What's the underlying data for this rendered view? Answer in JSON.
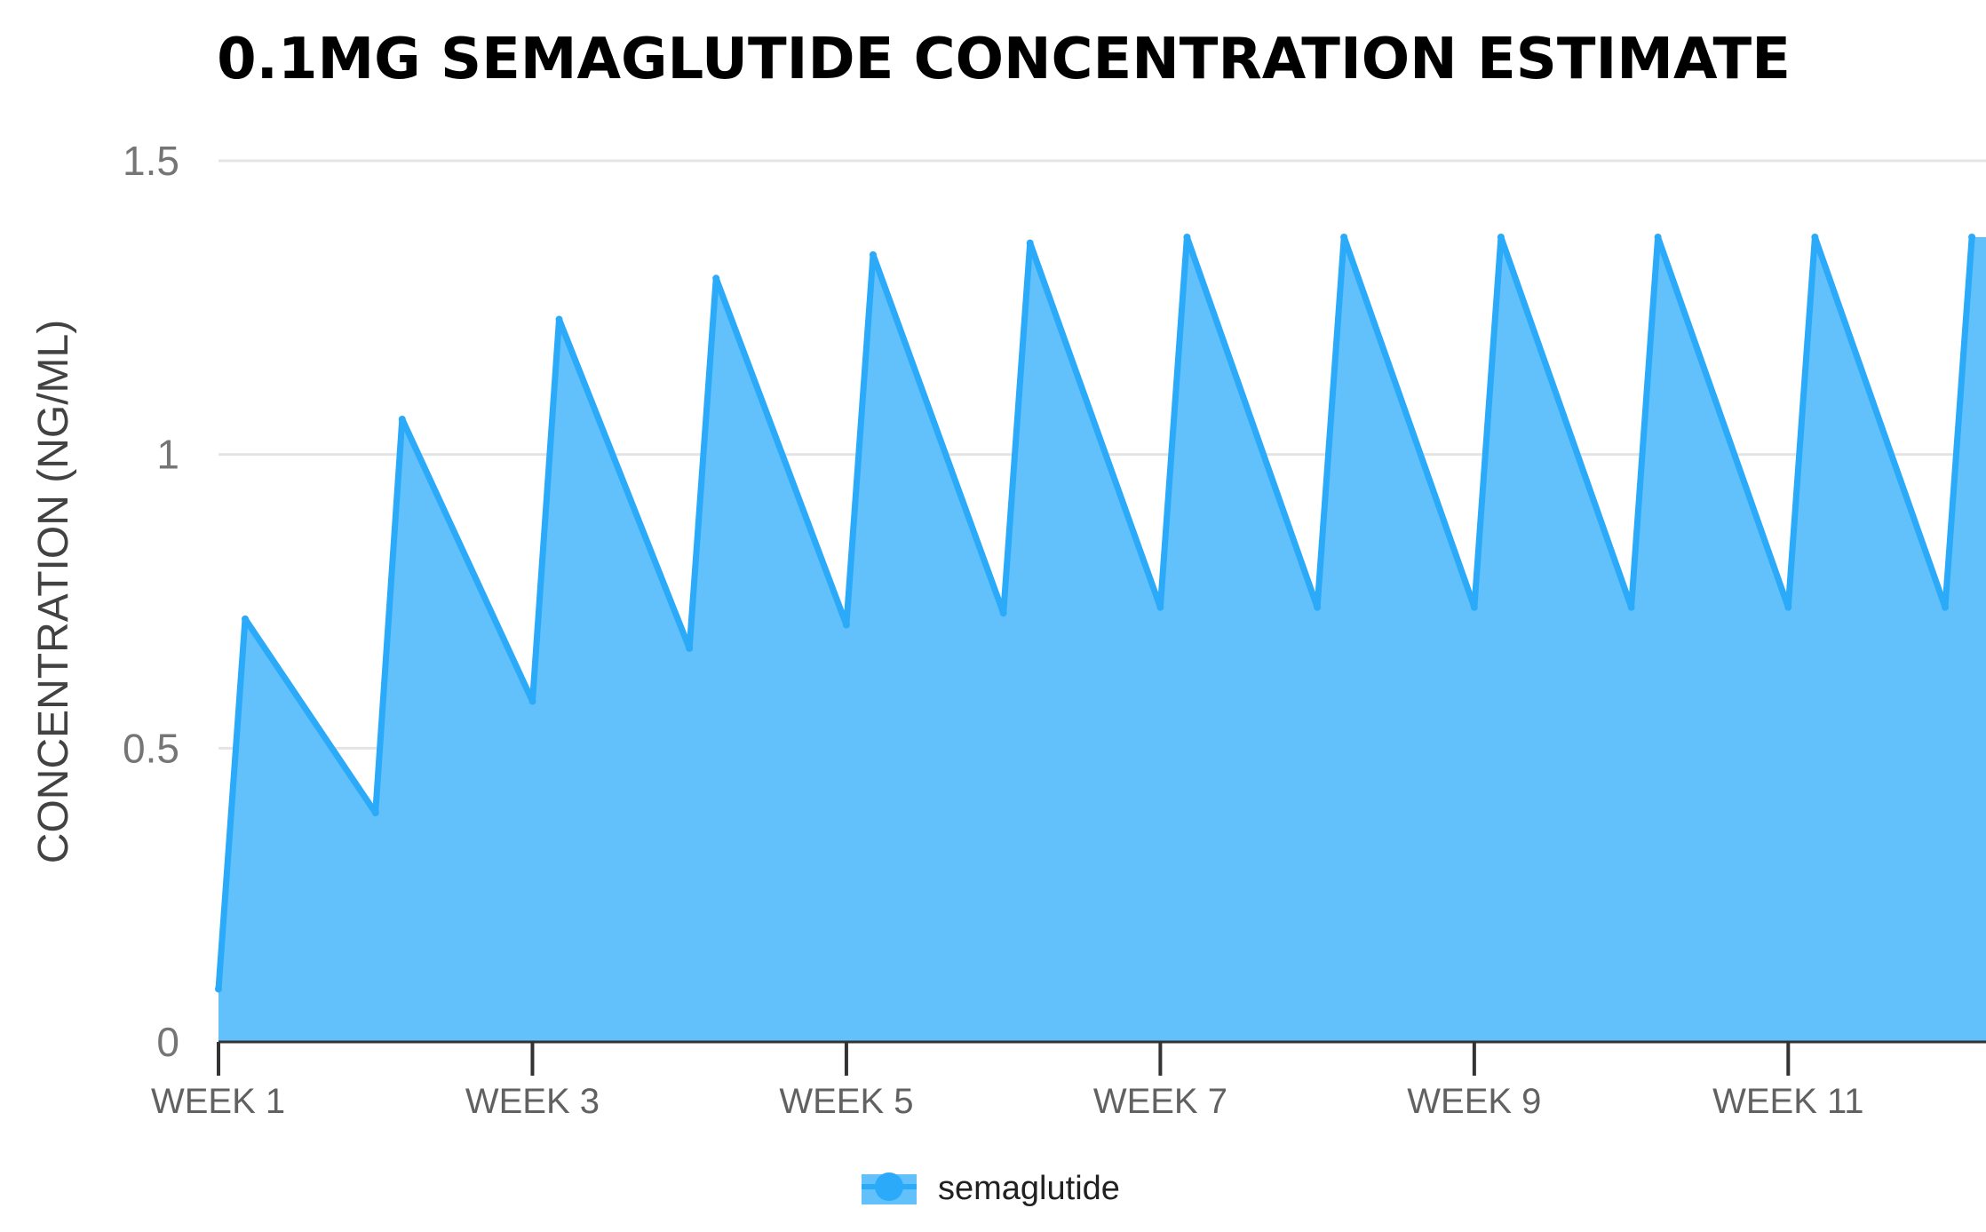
{
  "chart_data": {
    "type": "area",
    "title": "0.1MG SEMAGLUTIDE CONCENTRATION ESTIMATE",
    "xlabel": "",
    "ylabel": "CONCENTRATION (NG/ML)",
    "ylim": [
      0,
      1.5
    ],
    "yticks": [
      "0",
      "0.5",
      "1",
      "1.5"
    ],
    "xlim": [
      0,
      11.26
    ],
    "xticks": [
      {
        "value": 0,
        "label": "WEEK 1"
      },
      {
        "value": 2,
        "label": "WEEK 3"
      },
      {
        "value": 4,
        "label": "WEEK 5"
      },
      {
        "value": 6,
        "label": "WEEK 7"
      },
      {
        "value": 8,
        "label": "WEEK 9"
      },
      {
        "value": 10,
        "label": "WEEK 11"
      }
    ],
    "grid": true,
    "legend_position": "bottom-center",
    "series": [
      {
        "name": "semaglutide",
        "color": "#2aaaf8",
        "fill": "#62c0fb",
        "points": [
          {
            "x": 0.0,
            "y": 0.09
          },
          {
            "x": 0.17,
            "y": 0.72
          },
          {
            "x": 1.0,
            "y": 0.39
          },
          {
            "x": 1.17,
            "y": 1.06
          },
          {
            "x": 2.0,
            "y": 0.58
          },
          {
            "x": 2.17,
            "y": 1.23
          },
          {
            "x": 3.0,
            "y": 0.67
          },
          {
            "x": 3.17,
            "y": 1.3
          },
          {
            "x": 4.0,
            "y": 0.71
          },
          {
            "x": 4.17,
            "y": 1.34
          },
          {
            "x": 5.0,
            "y": 0.73
          },
          {
            "x": 5.17,
            "y": 1.36
          },
          {
            "x": 6.0,
            "y": 0.74
          },
          {
            "x": 6.17,
            "y": 1.37
          },
          {
            "x": 7.0,
            "y": 0.74
          },
          {
            "x": 7.17,
            "y": 1.37
          },
          {
            "x": 8.0,
            "y": 0.74
          },
          {
            "x": 8.17,
            "y": 1.37
          },
          {
            "x": 9.0,
            "y": 0.74
          },
          {
            "x": 9.17,
            "y": 1.37
          },
          {
            "x": 10.0,
            "y": 0.74
          },
          {
            "x": 10.17,
            "y": 1.37
          },
          {
            "x": 11.0,
            "y": 0.74
          },
          {
            "x": 11.17,
            "y": 1.37
          }
        ]
      }
    ]
  }
}
